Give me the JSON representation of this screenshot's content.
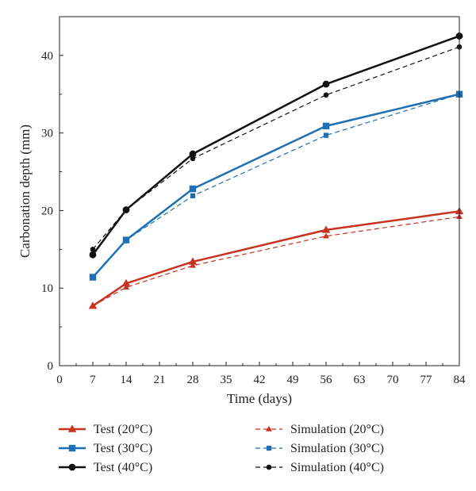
{
  "chart_data": {
    "type": "line",
    "xlabel": "Time (days)",
    "ylabel": "Carbonation depth (mm)",
    "xlim": [
      0,
      84
    ],
    "ylim": [
      0,
      45
    ],
    "xticks": [
      "0",
      "7",
      "14",
      "21",
      "28",
      "35",
      "42",
      "49",
      "56",
      "63",
      "70",
      "77",
      "84"
    ],
    "yticks": [
      "0",
      "10",
      "20",
      "30",
      "40"
    ],
    "grid": false,
    "legend_position": "bottom",
    "x": [
      7,
      14,
      28,
      56,
      84
    ],
    "series": [
      {
        "name": "Test (20°C)",
        "values": [
          7.7,
          10.6,
          13.4,
          17.5,
          19.9
        ],
        "color": "#c8321e",
        "marker": "triangle",
        "style": "solid"
      },
      {
        "name": "Test (30°C)",
        "values": [
          11.4,
          16.2,
          22.8,
          30.9,
          35.0
        ],
        "color": "#1f6fb4",
        "marker": "square",
        "style": "solid"
      },
      {
        "name": "Test (40°C)",
        "values": [
          14.3,
          20.1,
          27.3,
          36.3,
          42.5
        ],
        "color": "#111111",
        "marker": "circle",
        "style": "solid"
      },
      {
        "name": "Simulation (20°C)",
        "values": [
          7.7,
          10.1,
          12.9,
          16.7,
          19.2
        ],
        "color": "#c8321e",
        "marker": "triangle",
        "style": "dashed"
      },
      {
        "name": "Simulation (30°C)",
        "values": [
          11.4,
          16.2,
          21.9,
          29.7,
          35.0
        ],
        "color": "#1f6fb4",
        "marker": "square",
        "style": "dashed"
      },
      {
        "name": "Simulation (40°C)",
        "values": [
          15.0,
          20.1,
          26.7,
          34.9,
          41.1
        ],
        "color": "#111111",
        "marker": "circle",
        "style": "dashed"
      }
    ]
  }
}
